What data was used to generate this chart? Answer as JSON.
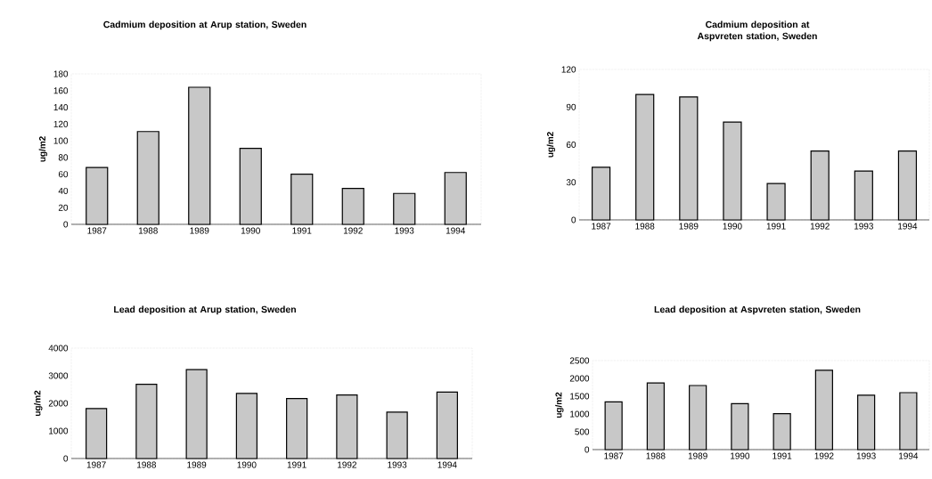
{
  "chart_data": [
    {
      "type": "bar",
      "title": "Cadmium deposition at Arup station, Sweden",
      "ylabel": "ug/m2",
      "categories": [
        "1987",
        "1988",
        "1989",
        "1990",
        "1991",
        "1992",
        "1993",
        "1994"
      ],
      "values": [
        68,
        111,
        164,
        91,
        60,
        43,
        37,
        62
      ],
      "color": "#c8c8c8",
      "ylim": [
        0,
        180
      ],
      "yticks": [
        0,
        20,
        40,
        60,
        80,
        100,
        120,
        140,
        160,
        180
      ]
    },
    {
      "type": "bar",
      "title": "Cadmium deposition at Aspvreten station, Sweden",
      "ylabel": "ug/m2",
      "categories": [
        "1987",
        "1988",
        "1989",
        "1990",
        "1991",
        "1992",
        "1993",
        "1994"
      ],
      "values": [
        42,
        100,
        98,
        78,
        29,
        55,
        39,
        55
      ],
      "color": "#c8c8c8",
      "ylim": [
        0,
        120
      ],
      "yticks": [
        0,
        30,
        60,
        90,
        120
      ]
    },
    {
      "type": "bar",
      "title": "Lead deposition at Arup station, Sweden",
      "ylabel": "ug/m2",
      "categories": [
        "1987",
        "1988",
        "1989",
        "1990",
        "1991",
        "1992",
        "1993",
        "1994"
      ],
      "values": [
        1810,
        2690,
        3220,
        2360,
        2170,
        2300,
        1680,
        2410
      ],
      "color": "#c8c8c8",
      "ylim": [
        0,
        4000
      ],
      "yticks": [
        0,
        1000,
        2000,
        3000,
        4000
      ]
    },
    {
      "type": "bar",
      "title": "Lead deposition at Aspvreten station, Sweden",
      "ylabel": "ug/m2",
      "categories": [
        "1987",
        "1988",
        "1989",
        "1990",
        "1991",
        "1992",
        "1993",
        "1994"
      ],
      "values": [
        1340,
        1870,
        1800,
        1290,
        1010,
        2230,
        1530,
        1600
      ],
      "color": "#c8c8c8",
      "ylim": [
        0,
        2500
      ],
      "yticks": [
        0,
        500,
        1000,
        1500,
        2000,
        2500
      ]
    }
  ]
}
